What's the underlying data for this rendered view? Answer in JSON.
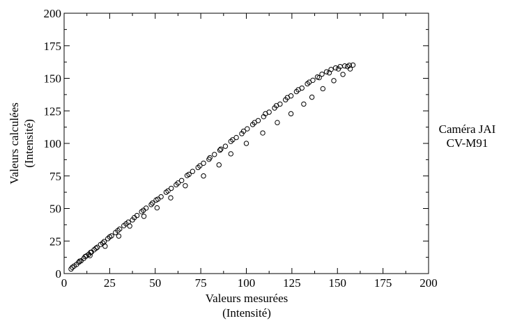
{
  "chart_data": {
    "type": "scatter",
    "xlabel": [
      "Valeurs mesurées",
      "(Intensité)"
    ],
    "ylabel": [
      "Valeurs calculées",
      "(Intensité)"
    ],
    "xlim": [
      0,
      200
    ],
    "ylim": [
      0,
      200
    ],
    "xticks": [
      "0",
      "25",
      "50",
      "75",
      "100",
      "125",
      "150",
      "175",
      "200"
    ],
    "yticks": [
      "0",
      "25",
      "50",
      "75",
      "100",
      "125",
      "150",
      "175",
      "200"
    ],
    "grid": false,
    "marker": "open-circle",
    "annotation": [
      "Caméra JAI",
      "CV-M91"
    ],
    "points": [
      [
        3.8,
        3.5
      ],
      [
        4.5,
        4.8
      ],
      [
        5.5,
        5.8
      ],
      [
        6.8,
        7.0
      ],
      [
        8.0,
        8.6
      ],
      [
        9.3,
        9.8
      ],
      [
        10.8,
        11.6
      ],
      [
        12.2,
        13.5
      ],
      [
        13.5,
        14.8
      ],
      [
        15.0,
        16.5
      ],
      [
        16.5,
        18.3
      ],
      [
        18.2,
        20.2
      ],
      [
        20.0,
        22.3
      ],
      [
        22.0,
        24.6
      ],
      [
        24.0,
        26.8
      ],
      [
        26.0,
        29.0
      ],
      [
        28.2,
        31.5
      ],
      [
        30.5,
        34.2
      ],
      [
        32.8,
        36.8
      ],
      [
        35.2,
        39.5
      ],
      [
        37.5,
        41.2
      ],
      [
        40.0,
        44.6
      ],
      [
        42.5,
        47.5
      ],
      [
        45.0,
        50.3
      ],
      [
        47.8,
        53.0
      ],
      [
        50.5,
        56.5
      ],
      [
        53.2,
        59.0
      ],
      [
        56.0,
        62.5
      ],
      [
        58.8,
        65.5
      ],
      [
        61.5,
        68.2
      ],
      [
        64.5,
        71.5
      ],
      [
        67.5,
        75.3
      ],
      [
        70.5,
        78.5
      ],
      [
        73.5,
        81.5
      ],
      [
        76.5,
        84.8
      ],
      [
        79.5,
        87.8
      ],
      [
        82.5,
        91.5
      ],
      [
        85.5,
        94.8
      ],
      [
        88.5,
        97.8
      ],
      [
        91.5,
        101.5
      ],
      [
        94.5,
        104.5
      ],
      [
        97.5,
        107.5
      ],
      [
        100.5,
        111.2
      ],
      [
        103.5,
        114.5
      ],
      [
        106.5,
        117.5
      ],
      [
        109.5,
        120.5
      ],
      [
        112.5,
        124.0
      ],
      [
        115.5,
        127.2
      ],
      [
        118.5,
        130.2
      ],
      [
        121.5,
        133.5
      ],
      [
        124.5,
        136.5
      ],
      [
        127.5,
        139.8
      ],
      [
        130.5,
        142.5
      ],
      [
        133.5,
        145.8
      ],
      [
        136.5,
        148.5
      ],
      [
        139.0,
        151.0
      ],
      [
        141.5,
        153.2
      ],
      [
        144.0,
        155.0
      ],
      [
        146.5,
        156.8
      ],
      [
        149.0,
        158.0
      ],
      [
        151.5,
        159.0
      ],
      [
        154.0,
        159.5
      ],
      [
        156.5,
        160.0
      ],
      [
        158.5,
        160.2
      ],
      [
        8.5,
        9.5
      ],
      [
        11.5,
        13.0
      ],
      [
        14.5,
        16.2
      ],
      [
        17.5,
        19.5
      ],
      [
        21.2,
        23.5
      ],
      [
        25.0,
        28.2
      ],
      [
        29.5,
        33.0
      ],
      [
        34.0,
        38.2
      ],
      [
        38.5,
        43.0
      ],
      [
        43.5,
        48.6
      ],
      [
        48.5,
        54.2
      ],
      [
        51.5,
        57.2
      ],
      [
        57.0,
        63.5
      ],
      [
        62.5,
        69.6
      ],
      [
        68.5,
        76.2
      ],
      [
        74.5,
        82.8
      ],
      [
        80.0,
        89.0
      ],
      [
        86.0,
        95.6
      ],
      [
        92.5,
        102.8
      ],
      [
        98.5,
        109.4
      ],
      [
        104.5,
        116.0
      ],
      [
        110.5,
        122.8
      ],
      [
        116.5,
        129.0
      ],
      [
        122.5,
        135.2
      ],
      [
        128.5,
        141.2
      ],
      [
        134.5,
        147.0
      ],
      [
        140.0,
        150.5
      ],
      [
        145.5,
        154.2
      ],
      [
        150.5,
        157.2
      ],
      [
        155.5,
        159.0
      ],
      [
        14.2,
        13.8
      ],
      [
        22.5,
        21.0
      ],
      [
        30.0,
        28.8
      ],
      [
        36.0,
        36.5
      ],
      [
        43.8,
        44.0
      ],
      [
        51.0,
        50.5
      ],
      [
        58.5,
        58.2
      ],
      [
        66.5,
        67.5
      ],
      [
        76.5,
        75.0
      ],
      [
        85.0,
        83.5
      ],
      [
        91.5,
        92.0
      ],
      [
        100.0,
        100.0
      ],
      [
        109.0,
        108.0
      ],
      [
        117.0,
        116.0
      ],
      [
        124.5,
        122.8
      ],
      [
        131.5,
        130.2
      ],
      [
        136.0,
        135.5
      ],
      [
        142.0,
        142.0
      ],
      [
        148.0,
        148.2
      ],
      [
        153.0,
        153.0
      ],
      [
        157.0,
        157.2
      ]
    ]
  }
}
